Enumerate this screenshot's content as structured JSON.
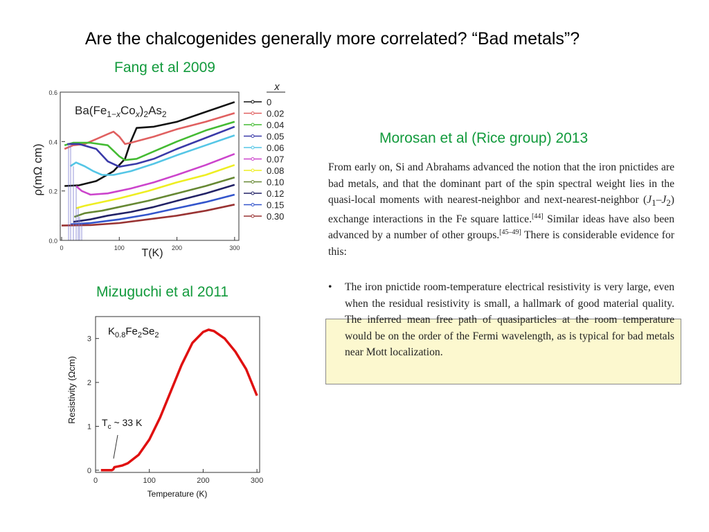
{
  "slide": {
    "title": "Are the chalcogenides generally more correlated?  “Bad metals”?",
    "credit_fang": "Fang et al 2009",
    "credit_morosan": "Morosan et al (Rice group) 2013",
    "credit_mizuguchi": "Mizuguchi et al 2011"
  },
  "quote": {
    "p1_a": "From early on, Si and Abrahams advanced the notion that the iron pnictides are bad metals, and that the dominant part of the spin spectral weight lies in the quasi-local moments with nearest-neighbor and next-nearest-neighbor (",
    "p1_j": "J",
    "p1_j1": "1",
    "p1_dash": "–",
    "p1_j2": "J",
    "p1_j2sub": "2",
    "p1_b": ") exchange interactions in the Fe square lattice.",
    "ref1": "[44]",
    "p1_c": " Similar ideas have also been advanced by a number of other groups.",
    "ref2": "[45–49]",
    "p1_d": " There is considerable evidence for this:",
    "bullet": "•",
    "p2": "The iron pnictide room-temperature electrical resistivity is very large, even when the residual resistivity is small, a hallmark of good material quality. The inferred mean free path of quasiparticles at the room temperature would be on the order of the Fermi wavelength, as is typical for bad metals near Mott localization.",
    "highlight_color": "#fcf8cf"
  },
  "chart_data": [
    {
      "type": "line",
      "compound_label": {
        "pre": "Ba(Fe",
        "s1": "1−",
        "x1": "x",
        "mid": "Co",
        "x2": "x",
        "post": ")",
        "s2": "2",
        "tail": "As",
        "s3": "2"
      },
      "xlabel": "T(K)",
      "ylabel": "ρ(mΩ cm)",
      "xlim": [
        0,
        305
      ],
      "ylim": [
        0,
        0.6
      ],
      "xticks": [
        "0",
        "100",
        "200",
        "300"
      ],
      "yticks": [
        "0.0",
        "0.2",
        "0.4",
        "0.6"
      ],
      "legend_title": "x",
      "legend_position": "right",
      "series": [
        {
          "name": "0",
          "color": "#111111",
          "points": [
            [
              5,
              0.22
            ],
            [
              30,
              0.223
            ],
            [
              60,
              0.24
            ],
            [
              90,
              0.28
            ],
            [
              110,
              0.33
            ],
            [
              120,
              0.4
            ],
            [
              130,
              0.455
            ],
            [
              160,
              0.46
            ],
            [
              200,
              0.48
            ],
            [
              250,
              0.52
            ],
            [
              300,
              0.56
            ]
          ]
        },
        {
          "name": "0.02",
          "color": "#e06060",
          "points": [
            [
              5,
              0.37
            ],
            [
              20,
              0.385
            ],
            [
              40,
              0.39
            ],
            [
              60,
              0.41
            ],
            [
              80,
              0.43
            ],
            [
              90,
              0.44
            ],
            [
              100,
              0.42
            ],
            [
              110,
              0.39
            ],
            [
              120,
              0.395
            ],
            [
              160,
              0.42
            ],
            [
              200,
              0.45
            ],
            [
              250,
              0.48
            ],
            [
              300,
              0.515
            ]
          ]
        },
        {
          "name": "0.04",
          "color": "#44bb33",
          "points": [
            [
              5,
              0.385
            ],
            [
              20,
              0.395
            ],
            [
              50,
              0.395
            ],
            [
              80,
              0.385
            ],
            [
              100,
              0.34
            ],
            [
              110,
              0.325
            ],
            [
              130,
              0.33
            ],
            [
              160,
              0.36
            ],
            [
              200,
              0.4
            ],
            [
              250,
              0.445
            ],
            [
              300,
              0.48
            ]
          ]
        },
        {
          "name": "0.05",
          "color": "#3a3aa8",
          "points": [
            [
              10,
              0.39
            ],
            [
              30,
              0.39
            ],
            [
              60,
              0.37
            ],
            [
              80,
              0.32
            ],
            [
              100,
              0.298
            ],
            [
              130,
              0.31
            ],
            [
              160,
              0.33
            ],
            [
              200,
              0.37
            ],
            [
              250,
              0.415
            ],
            [
              300,
              0.46
            ]
          ]
        },
        {
          "name": "0.06",
          "color": "#55c6e6",
          "points": [
            [
              15,
              0.3
            ],
            [
              25,
              0.315
            ],
            [
              40,
              0.3
            ],
            [
              55,
              0.28
            ],
            [
              70,
              0.265
            ],
            [
              90,
              0.265
            ],
            [
              120,
              0.28
            ],
            [
              160,
              0.31
            ],
            [
              200,
              0.345
            ],
            [
              250,
              0.385
            ],
            [
              300,
              0.425
            ]
          ]
        },
        {
          "name": "0.07",
          "color": "#cc44cc",
          "points": [
            [
              25,
              0.22
            ],
            [
              35,
              0.2
            ],
            [
              50,
              0.185
            ],
            [
              80,
              0.19
            ],
            [
              120,
              0.21
            ],
            [
              160,
              0.235
            ],
            [
              200,
              0.265
            ],
            [
              250,
              0.305
            ],
            [
              300,
              0.35
            ]
          ]
        },
        {
          "name": "0.08",
          "color": "#eeee22",
          "points": [
            [
              25,
              0.13
            ],
            [
              40,
              0.14
            ],
            [
              60,
              0.15
            ],
            [
              100,
              0.17
            ],
            [
              150,
              0.2
            ],
            [
              200,
              0.235
            ],
            [
              250,
              0.265
            ],
            [
              300,
              0.305
            ]
          ]
        },
        {
          "name": "0.10",
          "color": "#668833",
          "points": [
            [
              22,
              0.095
            ],
            [
              40,
              0.11
            ],
            [
              70,
              0.12
            ],
            [
              100,
              0.135
            ],
            [
              150,
              0.16
            ],
            [
              200,
              0.19
            ],
            [
              250,
              0.22
            ],
            [
              300,
              0.255
            ]
          ]
        },
        {
          "name": "0.12",
          "color": "#222266",
          "points": [
            [
              20,
              0.075
            ],
            [
              50,
              0.085
            ],
            [
              80,
              0.1
            ],
            [
              120,
              0.115
            ],
            [
              160,
              0.135
            ],
            [
              200,
              0.16
            ],
            [
              250,
              0.19
            ],
            [
              300,
              0.225
            ]
          ]
        },
        {
          "name": "0.15",
          "color": "#3355cc",
          "points": [
            [
              15,
              0.065
            ],
            [
              50,
              0.07
            ],
            [
              100,
              0.085
            ],
            [
              150,
              0.105
            ],
            [
              200,
              0.13
            ],
            [
              250,
              0.155
            ],
            [
              300,
              0.185
            ]
          ]
        },
        {
          "name": "0.30",
          "color": "#993333",
          "points": [
            [
              0,
              0.06
            ],
            [
              50,
              0.062
            ],
            [
              100,
              0.07
            ],
            [
              150,
              0.085
            ],
            [
              200,
              0.1
            ],
            [
              250,
              0.12
            ],
            [
              300,
              0.145
            ]
          ]
        }
      ]
    },
    {
      "type": "line",
      "compound_label": {
        "a": "K",
        "as": "0.8",
        "b": "Fe",
        "bs": "2",
        "c": "Se",
        "cs": "2"
      },
      "xlabel": "Temperature (K)",
      "ylabel": "Resistivity (Ωcm)",
      "xlim": [
        0,
        305
      ],
      "ylim": [
        -0.05,
        3.5
      ],
      "xticks": [
        "0",
        "100",
        "200",
        "300"
      ],
      "yticks": [
        "0",
        "1",
        "2",
        "3"
      ],
      "annotation": {
        "t": "T",
        "sub": "c",
        "rest": " ~ 33 K"
      },
      "series": [
        {
          "color": "#e01010",
          "points": [
            [
              10,
              0
            ],
            [
              20,
              0
            ],
            [
              30,
              0
            ],
            [
              33,
              0.02
            ],
            [
              35,
              0.07
            ],
            [
              50,
              0.11
            ],
            [
              60,
              0.16
            ],
            [
              80,
              0.35
            ],
            [
              100,
              0.7
            ],
            [
              120,
              1.2
            ],
            [
              140,
              1.8
            ],
            [
              160,
              2.4
            ],
            [
              180,
              2.9
            ],
            [
              200,
              3.15
            ],
            [
              210,
              3.2
            ],
            [
              220,
              3.17
            ],
            [
              240,
              3.0
            ],
            [
              260,
              2.7
            ],
            [
              280,
              2.3
            ],
            [
              300,
              1.7
            ]
          ]
        }
      ]
    }
  ]
}
